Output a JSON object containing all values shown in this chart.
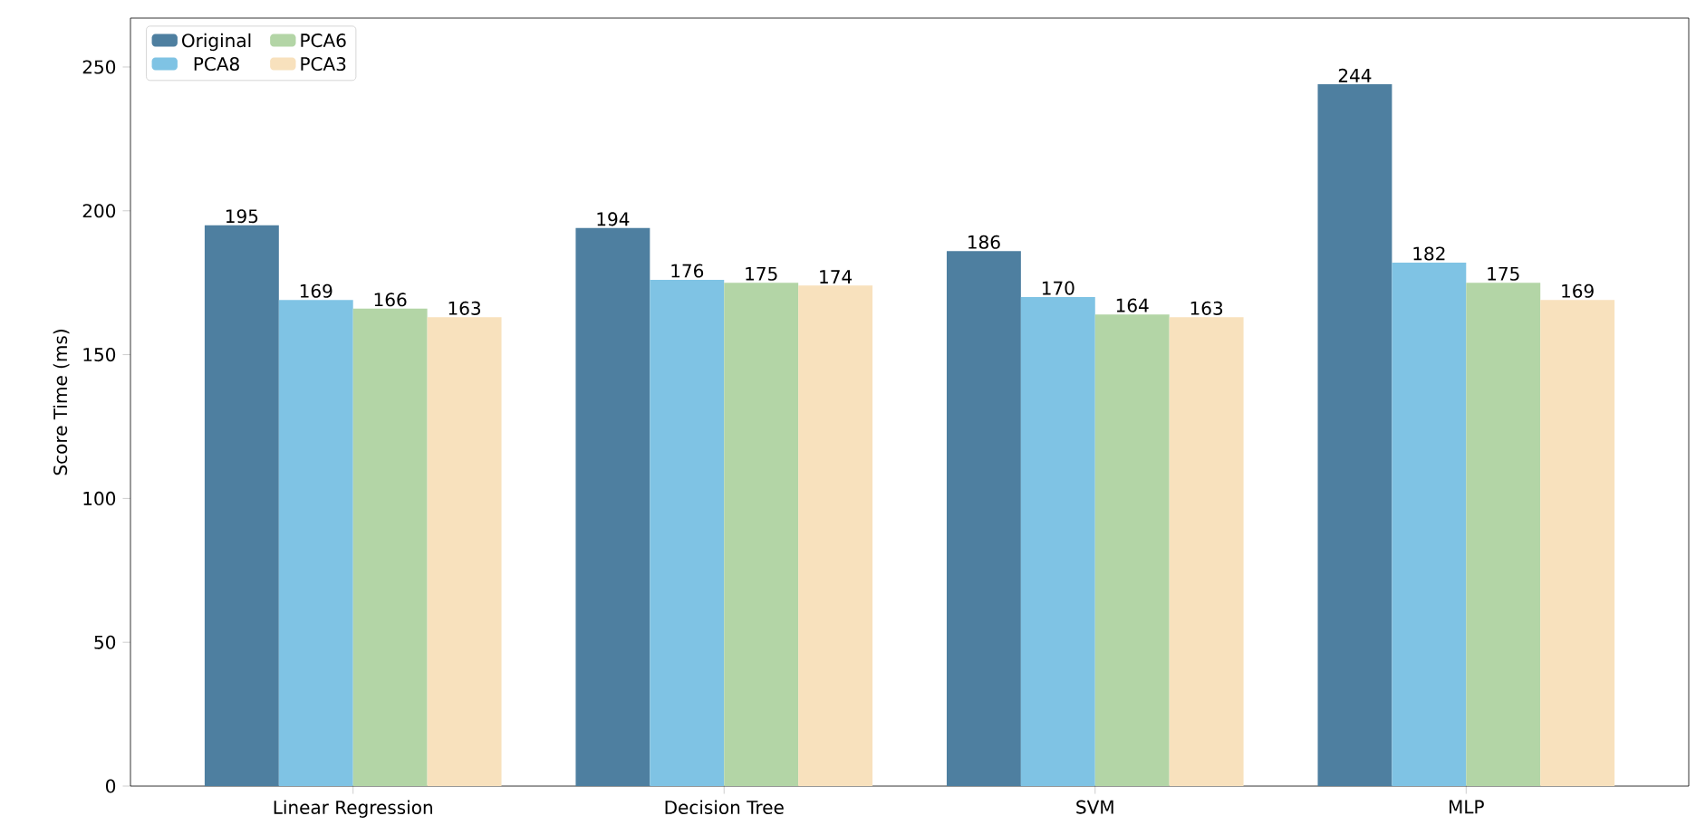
{
  "chart_data": {
    "type": "bar",
    "ylabel": "Score Time (ms)",
    "categories": [
      "Linear Regression",
      "Decision Tree",
      "SVM",
      "MLP"
    ],
    "series": [
      {
        "name": "Original",
        "color": "#4e7fa0",
        "values": [
          195,
          194,
          186,
          244
        ]
      },
      {
        "name": "PCA8",
        "color": "#7fc3e4",
        "values": [
          169,
          176,
          170,
          182
        ]
      },
      {
        "name": "PCA6",
        "color": "#b3d5a6",
        "values": [
          166,
          175,
          164,
          175
        ]
      },
      {
        "name": "PCA3",
        "color": "#f8e1bd",
        "values": [
          163,
          174,
          163,
          169
        ]
      }
    ],
    "ylim": [
      0,
      267
    ],
    "yticks": [
      0,
      50,
      100,
      150,
      200,
      250
    ],
    "data_labels": true,
    "legend": "top left",
    "grid": false
  }
}
